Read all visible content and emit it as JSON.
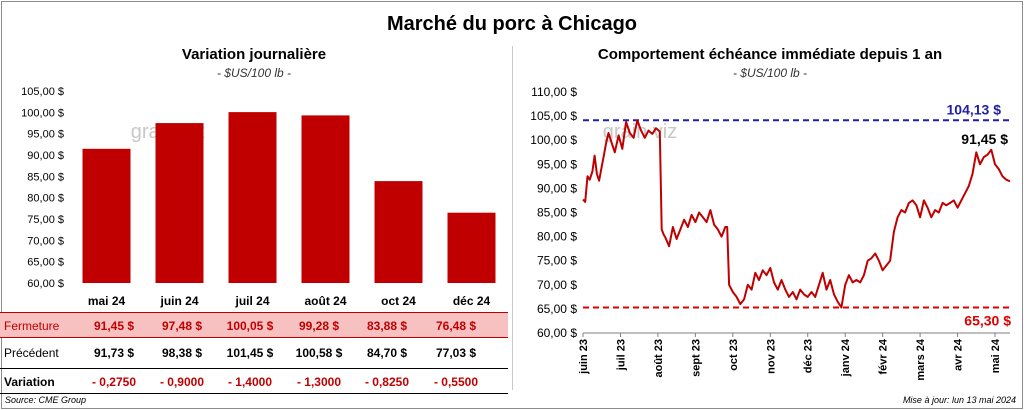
{
  "title": "Marché du porc à Chicago",
  "colors": {
    "bar": "#c00000",
    "line": "#c00000",
    "high": "#1f1fa8",
    "low": "#e00000"
  },
  "left_chart": {
    "title": "Variation  journalière",
    "unit": "- $US/100 lb -"
  },
  "right_chart": {
    "title": "Comportement  échéance immédiate depuis 1 an",
    "unit": "- $US/100 lb -"
  },
  "table": {
    "close_label": "Fermeture",
    "prev_label": "Précédent",
    "var_label": "Variation",
    "close": [
      "91,45  $",
      "97,48  $",
      "100,05  $",
      "99,28  $",
      "83,88  $",
      "76,48  $"
    ],
    "prev": [
      "91,73  $",
      "98,38  $",
      "101,45  $",
      "100,58  $",
      "84,70  $",
      "77,03  $"
    ],
    "var": [
      "- 0,2750",
      "- 0,9000",
      "- 1,4000",
      "- 1,3000",
      "- 0,8250",
      "- 0,5500"
    ]
  },
  "footer": {
    "source": "Source: CME Group",
    "updated": "Mise à jour: lun 13 mai 2024"
  },
  "watermark": "grain viz",
  "chart_data": [
    {
      "type": "bar",
      "title": "Variation  journalière",
      "ylabel": "$US/100 lb",
      "categories": [
        "mai 24",
        "juin 24",
        "juil 24",
        "août 24",
        "oct 24",
        "déc 24"
      ],
      "values": [
        91.45,
        97.48,
        100.05,
        99.28,
        83.88,
        76.48
      ],
      "ylim": [
        60,
        105
      ],
      "yticks": [
        "60,00 $",
        "65,00 $",
        "70,00 $",
        "75,00 $",
        "80,00 $",
        "85,00 $",
        "90,00 $",
        "95,00 $",
        "100,00 $",
        "105,00 $"
      ],
      "grid": false
    },
    {
      "type": "line",
      "title": "Comportement  échéance immédiate depuis 1 an",
      "ylabel": "$US/100 lb",
      "ylim": [
        60,
        110
      ],
      "yticks": [
        "60,00 $",
        "65,00 $",
        "70,00 $",
        "75,00 $",
        "80,00 $",
        "85,00 $",
        "90,00 $",
        "95,00 $",
        "100,00 $",
        "105,00 $",
        "110,00 $"
      ],
      "xticks": [
        "juin 23",
        "juil 23",
        "août 23",
        "sept 23",
        "oct 23",
        "nov 23",
        "déc 23",
        "janv 24",
        "févr 24",
        "mars 24",
        "avr 24",
        "mai 24"
      ],
      "xrange_months": [
        0,
        11.4
      ],
      "high": {
        "value": 104.13,
        "label": "104,13 $"
      },
      "low": {
        "value": 65.3,
        "label": "65,30 $"
      },
      "last": {
        "value": 91.45,
        "label": "91,45 $"
      },
      "x": [
        0.0,
        0.06,
        0.12,
        0.18,
        0.25,
        0.31,
        0.37,
        0.43,
        0.5,
        0.56,
        0.62,
        0.68,
        0.75,
        0.85,
        0.95,
        1.05,
        1.15,
        1.25,
        1.35,
        1.45,
        1.55,
        1.65,
        1.75,
        1.85,
        1.95,
        2.05,
        2.1,
        2.15,
        2.2,
        2.3,
        2.4,
        2.5,
        2.6,
        2.7,
        2.8,
        2.9,
        3.0,
        3.1,
        3.2,
        3.3,
        3.4,
        3.5,
        3.6,
        3.7,
        3.8,
        3.85,
        3.9,
        4.0,
        4.1,
        4.2,
        4.3,
        4.4,
        4.5,
        4.6,
        4.7,
        4.8,
        4.9,
        5.0,
        5.1,
        5.2,
        5.3,
        5.4,
        5.5,
        5.6,
        5.7,
        5.8,
        5.9,
        6.0,
        6.1,
        6.2,
        6.3,
        6.4,
        6.5,
        6.6,
        6.7,
        6.8,
        6.9,
        7.0,
        7.1,
        7.2,
        7.3,
        7.4,
        7.5,
        7.6,
        7.7,
        7.8,
        7.9,
        8.0,
        8.1,
        8.2,
        8.3,
        8.4,
        8.5,
        8.6,
        8.7,
        8.8,
        8.9,
        9.0,
        9.1,
        9.2,
        9.3,
        9.4,
        9.5,
        9.6,
        9.7,
        9.8,
        9.9,
        10.0,
        10.1,
        10.2,
        10.3,
        10.4,
        10.5,
        10.6,
        10.7,
        10.8,
        10.9,
        11.0,
        11.1,
        11.2,
        11.3,
        11.4
      ],
      "y": [
        87.7,
        87.2,
        92.5,
        91.8,
        93.5,
        96.8,
        93.0,
        91.6,
        94.5,
        97.0,
        99.5,
        101.5,
        99.8,
        97.5,
        101.0,
        98.2,
        103.8,
        101.5,
        100.5,
        104.1,
        102.0,
        100.5,
        102.0,
        101.3,
        102.5,
        101.8,
        81.5,
        80.5,
        79.8,
        78.0,
        82.0,
        79.5,
        81.5,
        83.5,
        82.0,
        84.5,
        83.0,
        85.0,
        84.0,
        83.0,
        85.5,
        82.5,
        81.5,
        80.0,
        82.0,
        82.0,
        70.0,
        68.5,
        67.5,
        66.0,
        67.0,
        70.0,
        69.0,
        72.5,
        71.0,
        73.0,
        72.0,
        73.5,
        70.5,
        69.0,
        71.0,
        69.0,
        67.5,
        68.5,
        67.0,
        69.0,
        68.0,
        67.5,
        68.5,
        67.5,
        70.0,
        72.5,
        69.0,
        71.0,
        68.0,
        66.5,
        65.3,
        70.0,
        72.0,
        70.5,
        71.0,
        70.5,
        72.0,
        75.0,
        75.5,
        76.5,
        75.0,
        73.0,
        74.0,
        75.0,
        81.0,
        84.0,
        85.5,
        85.0,
        87.0,
        87.5,
        86.5,
        84.0,
        87.5,
        86.0,
        84.0,
        85.5,
        85.0,
        87.0,
        86.5,
        87.0,
        87.5,
        86.0,
        87.5,
        89.0,
        90.5,
        93.0,
        97.5,
        95.0,
        96.5,
        97.0,
        98.0,
        95.0,
        94.0,
        92.5,
        91.8,
        91.45
      ]
    }
  ]
}
